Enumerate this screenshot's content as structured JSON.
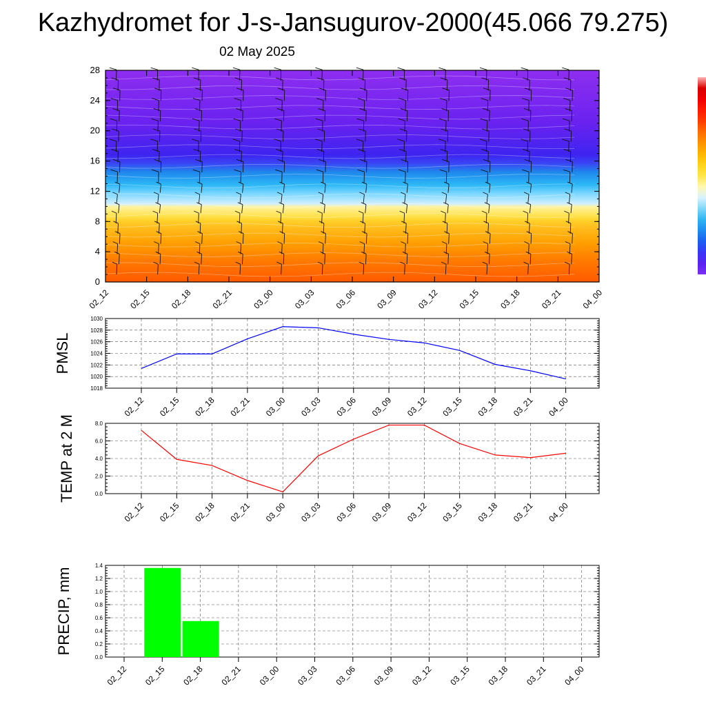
{
  "header": {
    "title": "Kazhydromet for J-s-Jansugurov-2000(45.066 79.275)",
    "date": "02 May 2025"
  },
  "colors": {
    "cross_section": [
      "#ff5a00",
      "#ff7a00",
      "#ff9d00",
      "#ffba1a",
      "#ffd02a",
      "#ffe14a",
      "#fff3a0",
      "#cfeeff",
      "#78d6ff",
      "#2cb7f5",
      "#1f86ec",
      "#3a46f5",
      "#3e24f0",
      "#6a22f0",
      "#8e2ef0"
    ],
    "pmsl_line": "#0000ff",
    "temp_line": "#ff0000",
    "precip_bar": "#00ff00",
    "colorbar": [
      "#7b2ff5",
      "#5a22f0",
      "#3a36f5",
      "#1c5ef0",
      "#1e8cf0",
      "#2fb4f2",
      "#7fd6f8",
      "#d8f2ff",
      "#fff8b0",
      "#ffe54a",
      "#ffd21a",
      "#ffb600",
      "#ff9200",
      "#ff6c00",
      "#ff3c00",
      "#ff1a00",
      "#f00000",
      "#d80000",
      "#ffb0b0"
    ]
  },
  "chart_data": [
    {
      "type": "heatmap",
      "name": "cross-section",
      "x": [
        "02_12",
        "02_15",
        "02_18",
        "02_21",
        "03_00",
        "03_03",
        "03_06",
        "03_09",
        "03_12",
        "03_15",
        "03_18",
        "03_21",
        "04_00"
      ],
      "ylim": [
        0,
        28
      ],
      "yticks": [
        0,
        4,
        8,
        12,
        16,
        20,
        24,
        28
      ]
    },
    {
      "type": "line",
      "name": "pmsl",
      "ylabel": "PMSL",
      "x": [
        "02_12",
        "02_15",
        "02_18",
        "02_21",
        "03_00",
        "03_03",
        "03_06",
        "03_09",
        "03_12",
        "03_15",
        "03_18",
        "03_21",
        "04_00"
      ],
      "values": [
        1021.4,
        1023.9,
        1023.9,
        1026.5,
        1028.6,
        1028.4,
        1027.3,
        1026.4,
        1025.8,
        1024.5,
        1022.1,
        1021.0,
        1019.6
      ],
      "ylim": [
        1018,
        1030
      ],
      "yticks": [
        "1018",
        "1020",
        "1022",
        "1024",
        "1026",
        "1028",
        "1030"
      ]
    },
    {
      "type": "line",
      "name": "temp",
      "ylabel": "TEMP at 2 M",
      "x": [
        "02_12",
        "02_15",
        "02_18",
        "02_21",
        "03_00",
        "03_03",
        "03_06",
        "03_09",
        "03_12",
        "03_15",
        "03_18",
        "03_21",
        "04_00"
      ],
      "values": [
        7.2,
        3.9,
        3.2,
        1.5,
        0.2,
        4.3,
        6.2,
        7.8,
        7.8,
        5.7,
        4.4,
        4.1,
        4.6
      ],
      "ylim": [
        0,
        8
      ],
      "yticks": [
        "0.0",
        "2.0",
        "4.0",
        "6.0",
        "8.0"
      ]
    },
    {
      "type": "bar",
      "name": "precip",
      "ylabel": "PRECIP, mm",
      "x": [
        "02_12",
        "02_15",
        "02_18",
        "02_21",
        "03_00",
        "03_03",
        "03_06",
        "03_09",
        "03_12",
        "03_15",
        "03_18",
        "03_21",
        "04_00"
      ],
      "values": [
        0,
        1.36,
        0.55,
        0,
        0,
        0,
        0,
        0,
        0,
        0,
        0,
        0,
        0
      ],
      "ylim": [
        0,
        1.4
      ],
      "yticks": [
        "0.0",
        "0.2",
        "0.4",
        "0.6",
        "0.8",
        "1.0",
        "1.2",
        "1.4"
      ]
    }
  ]
}
